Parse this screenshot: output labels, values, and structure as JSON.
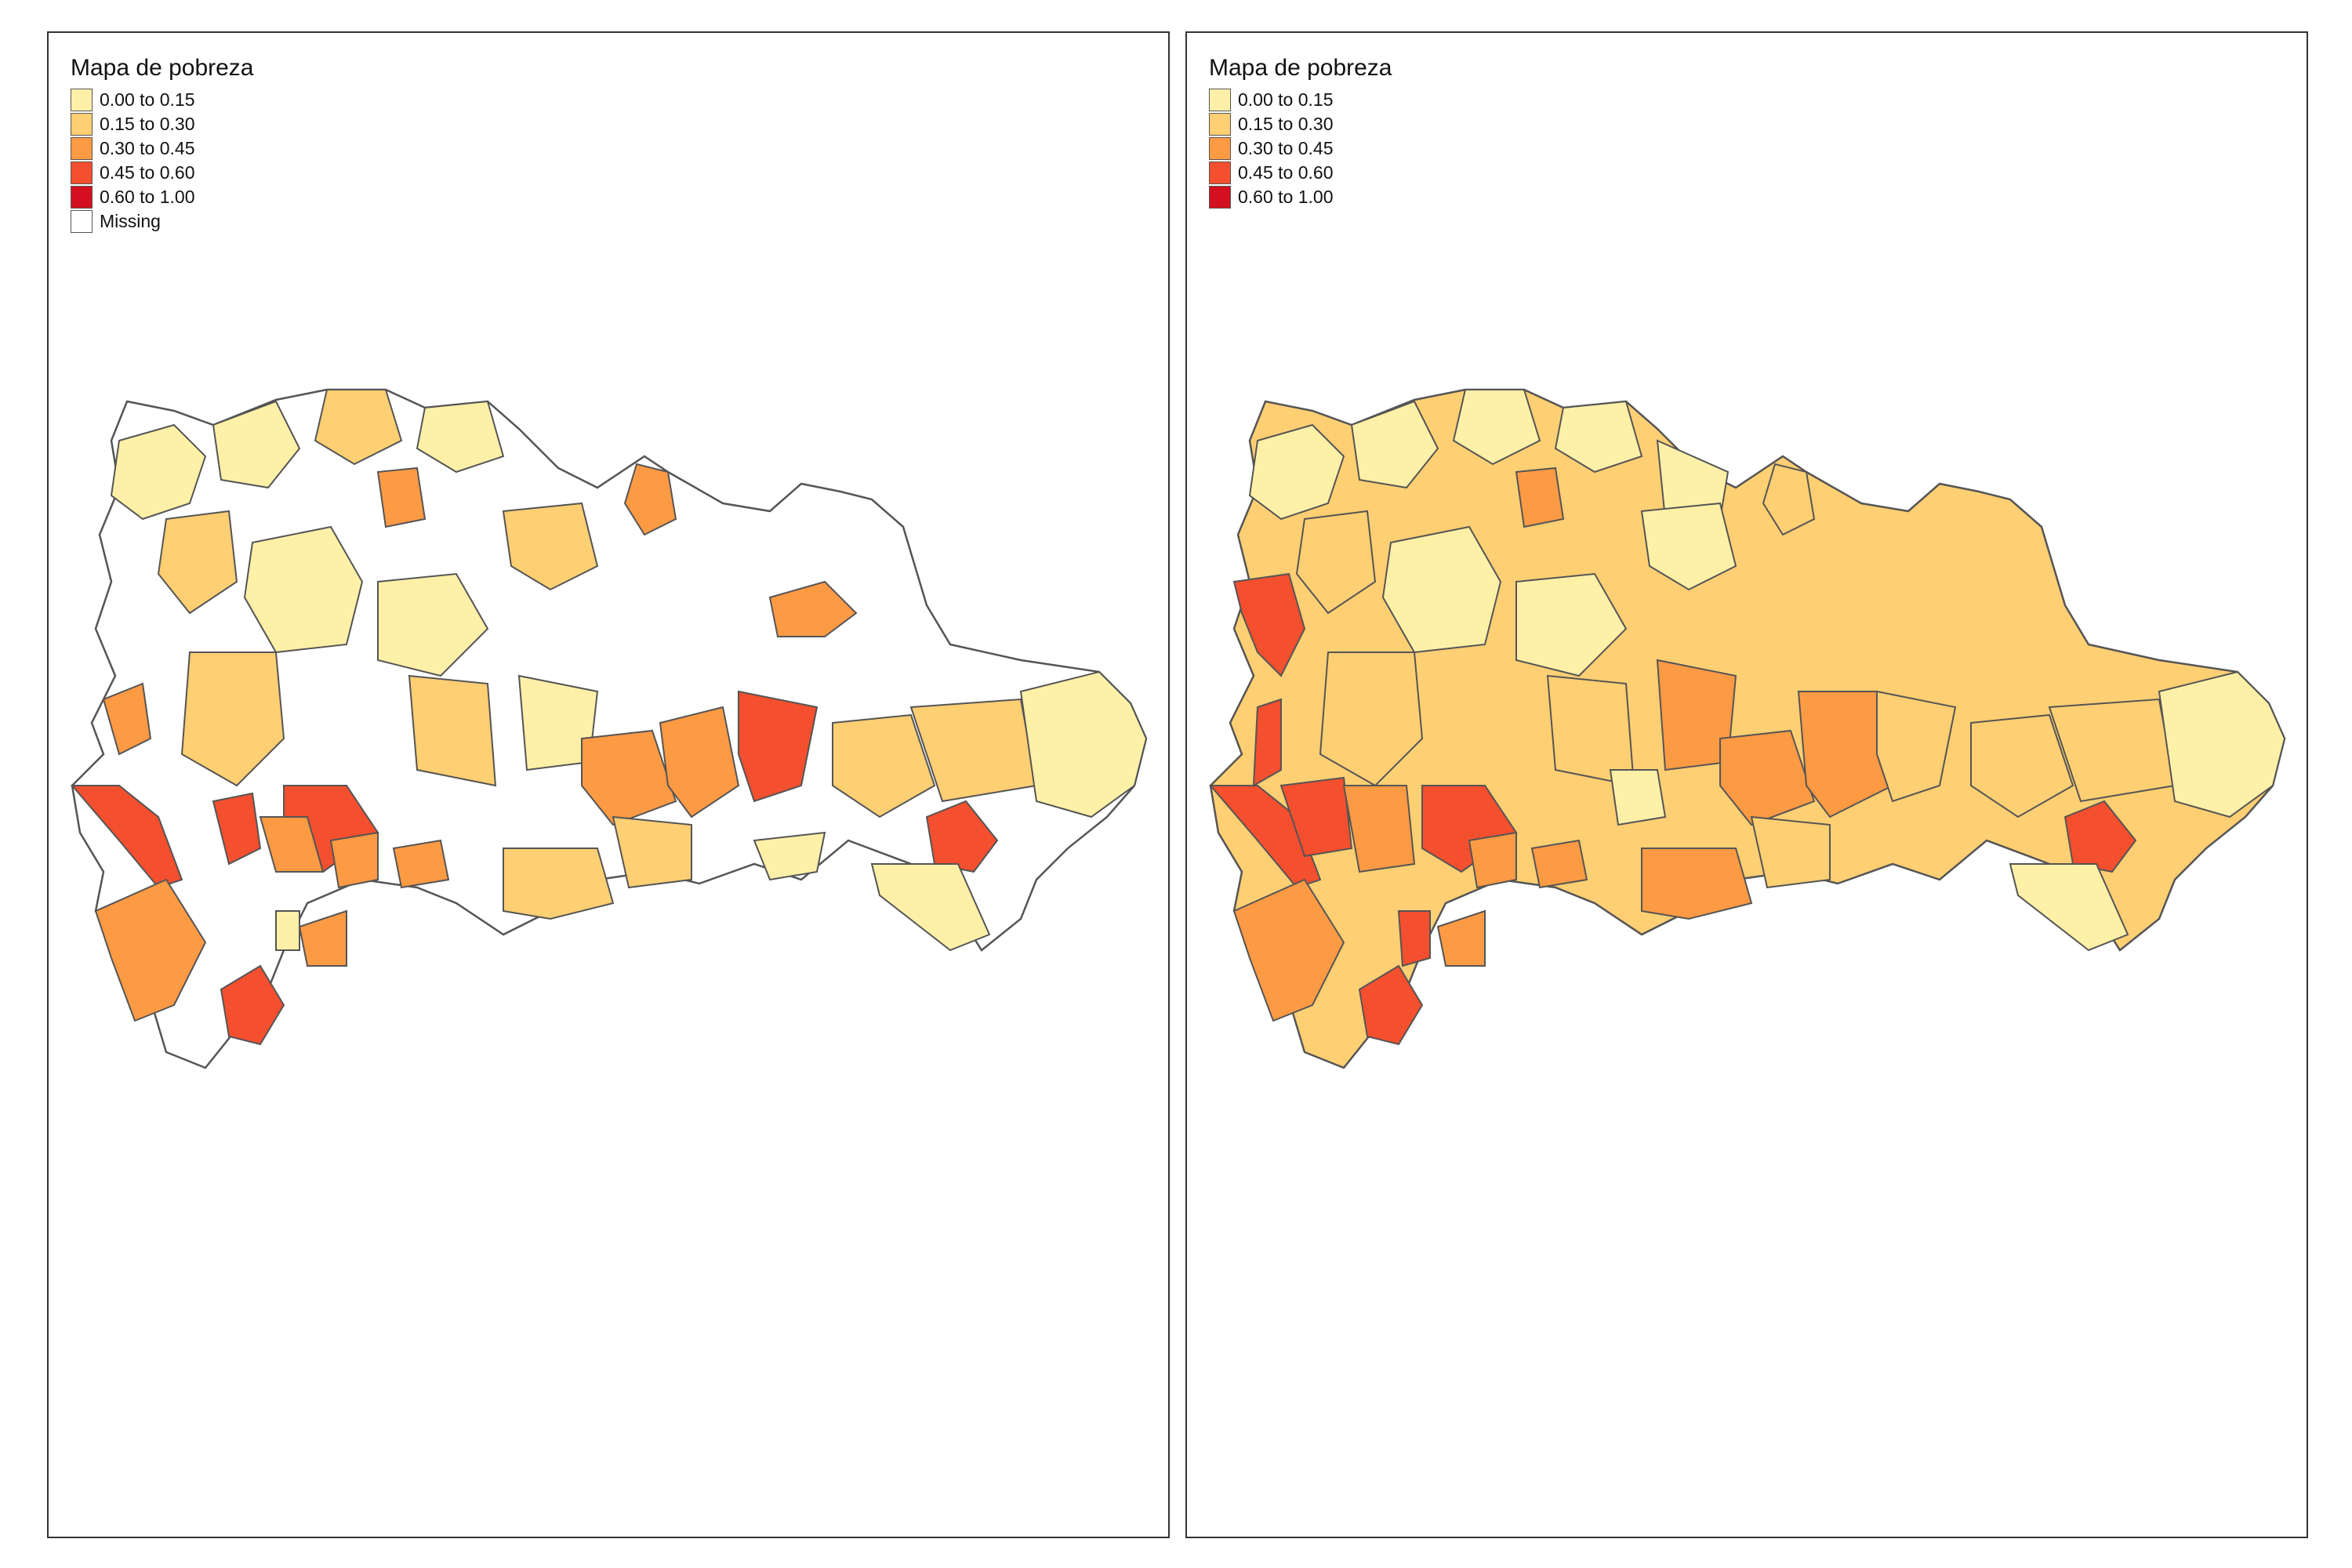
{
  "panels": [
    {
      "legend_title": "Mapa de pobreza",
      "legend": [
        {
          "label": "0.00 to 0.15",
          "color": "#FFF0A8"
        },
        {
          "label": "0.15 to 0.30",
          "color": "#FECF73"
        },
        {
          "label": "0.30 to 0.45",
          "color": "#FD9A44"
        },
        {
          "label": "0.45 to 0.60",
          "color": "#F44F2E"
        },
        {
          "label": "0.60 to 1.00",
          "color": "#D41020"
        },
        {
          "label": "Missing",
          "color": "#FFFFFF"
        }
      ]
    },
    {
      "legend_title": "Mapa de pobreza",
      "legend": [
        {
          "label": "0.00 to 0.15",
          "color": "#FFF0A8"
        },
        {
          "label": "0.15 to 0.30",
          "color": "#FECF73"
        },
        {
          "label": "0.30 to 0.45",
          "color": "#FD9A44"
        },
        {
          "label": "0.45 to 0.60",
          "color": "#F44F2E"
        },
        {
          "label": "0.60 to 1.00",
          "color": "#D41020"
        }
      ]
    }
  ]
}
